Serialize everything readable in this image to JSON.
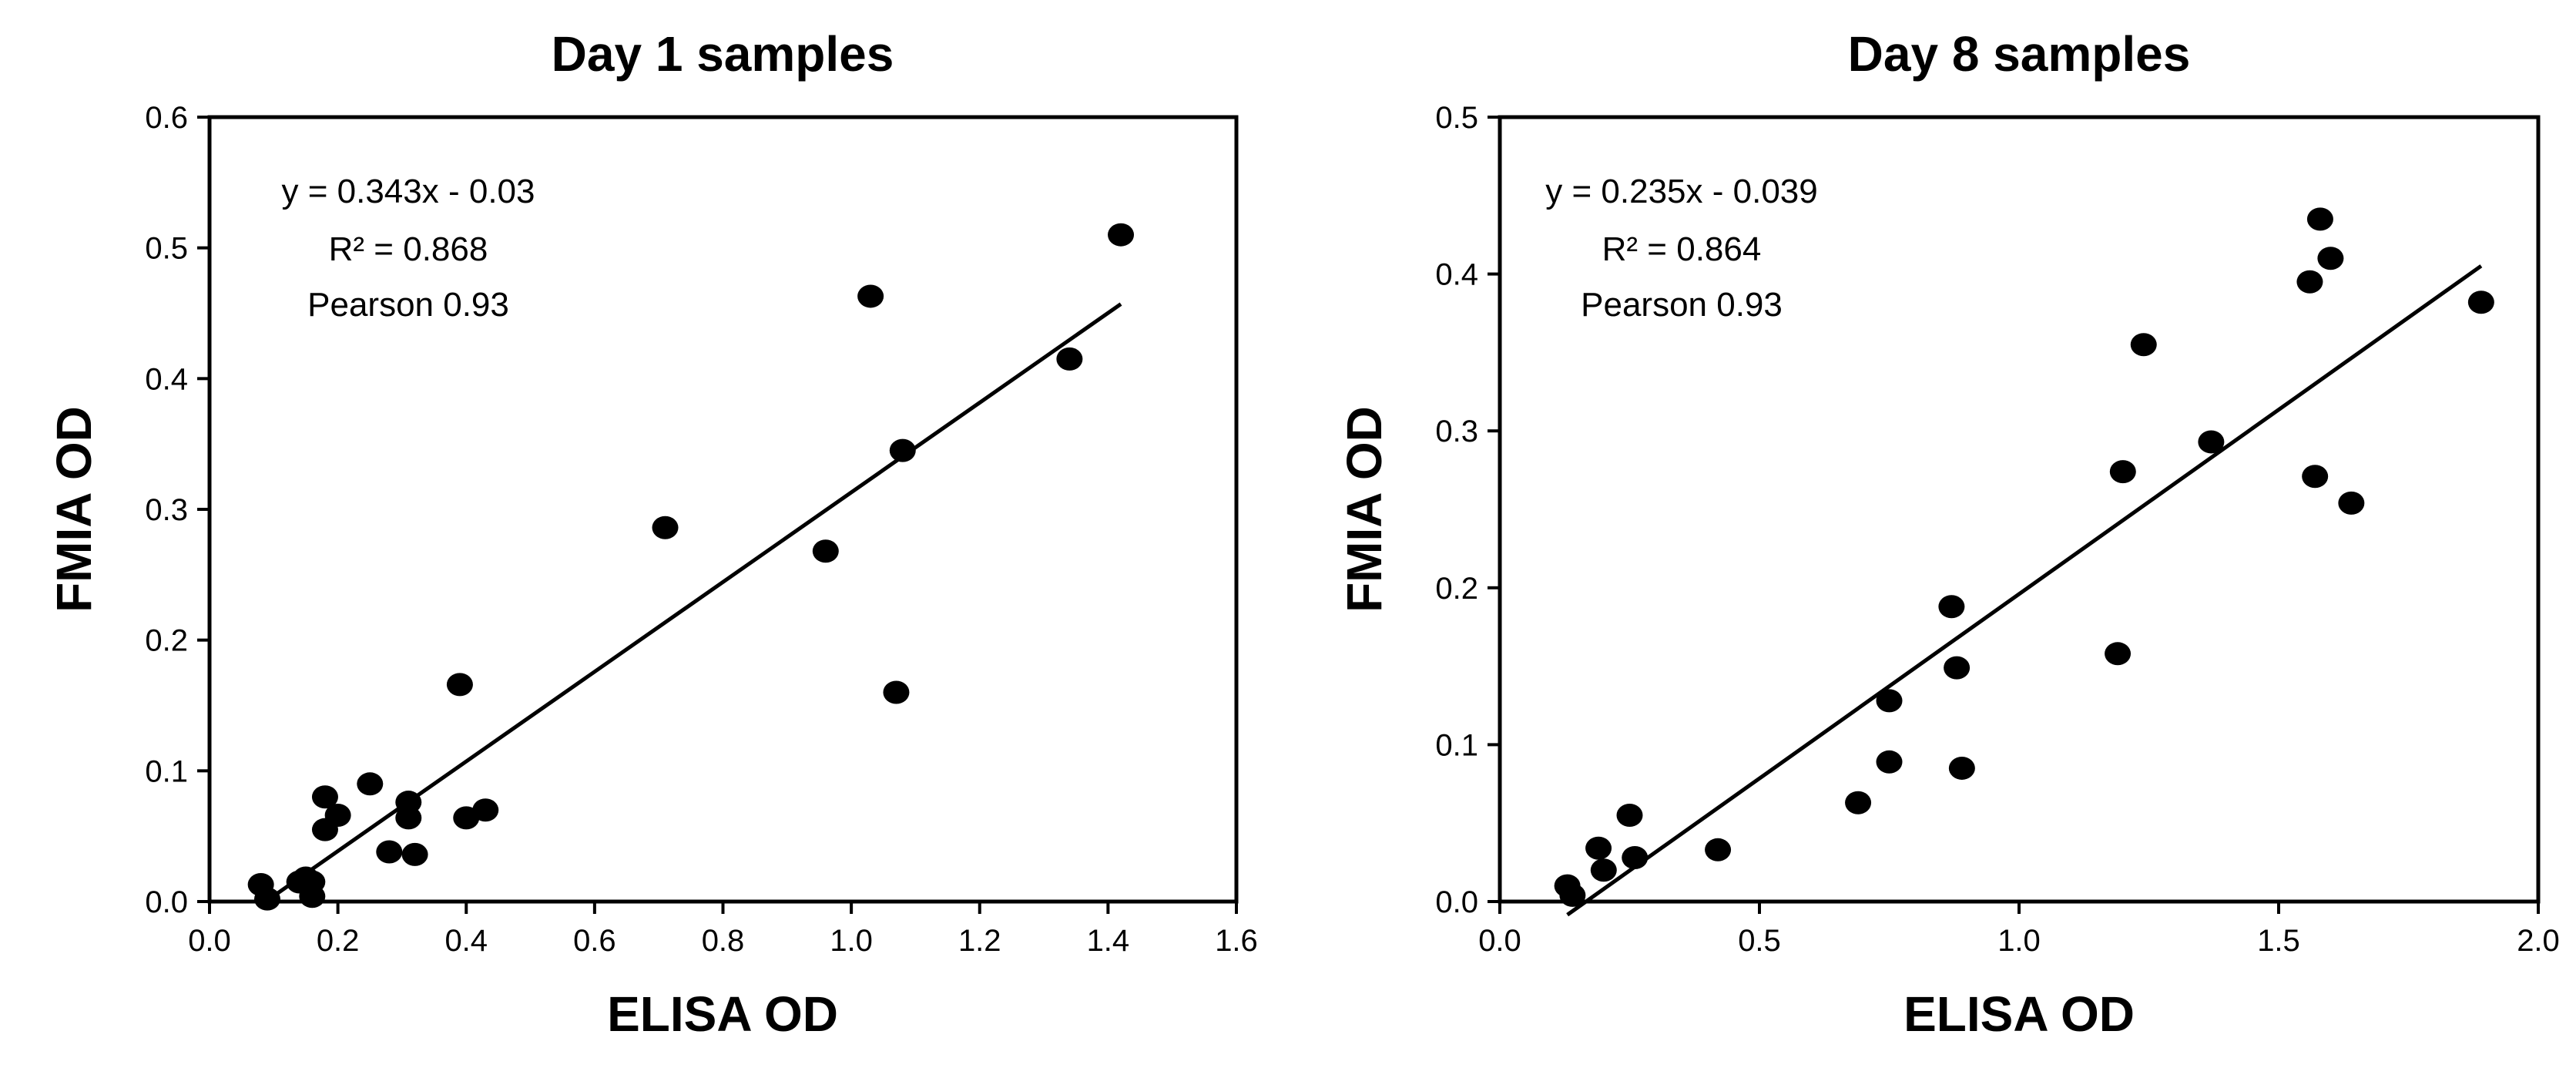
{
  "chart_data": [
    {
      "type": "scatter",
      "title": "Day 1 samples",
      "xlabel": "ELISA OD",
      "ylabel": "FMIA OD",
      "xlim": [
        0,
        1.6
      ],
      "ylim": [
        0,
        0.6
      ],
      "xticks": [
        0,
        0.2,
        0.4,
        0.6,
        0.8,
        1.0,
        1.2,
        1.4,
        1.6
      ],
      "xtick_labels": [
        "0.0",
        "0.2",
        "0.4",
        "0.6",
        "0.8",
        "1.0",
        "1.2",
        "1.4",
        "1.6"
      ],
      "yticks": [
        0,
        0.1,
        0.2,
        0.3,
        0.4,
        0.5,
        0.6
      ],
      "ytick_labels": [
        "0.0",
        "0.1",
        "0.2",
        "0.3",
        "0.4",
        "0.5",
        "0.6"
      ],
      "annotations": [
        "y = 0.343x - 0.03",
        "R² = 0.868",
        "Pearson 0.93"
      ],
      "trendline": {
        "slope": 0.343,
        "intercept": -0.03,
        "x_range": [
          0.09,
          1.42
        ]
      },
      "points": [
        [
          0.08,
          0.013
        ],
        [
          0.09,
          0.002
        ],
        [
          0.14,
          0.015
        ],
        [
          0.15,
          0.018
        ],
        [
          0.16,
          0.004
        ],
        [
          0.16,
          0.015
        ],
        [
          0.18,
          0.08
        ],
        [
          0.18,
          0.055
        ],
        [
          0.2,
          0.066
        ],
        [
          0.25,
          0.09
        ],
        [
          0.28,
          0.038
        ],
        [
          0.31,
          0.076
        ],
        [
          0.31,
          0.064
        ],
        [
          0.32,
          0.036
        ],
        [
          0.39,
          0.166
        ],
        [
          0.4,
          0.064
        ],
        [
          0.43,
          0.07
        ],
        [
          0.71,
          0.286
        ],
        [
          0.96,
          0.268
        ],
        [
          1.03,
          0.463
        ],
        [
          1.07,
          0.16
        ],
        [
          1.08,
          0.345
        ],
        [
          1.34,
          0.415
        ],
        [
          1.42,
          0.51
        ]
      ]
    },
    {
      "type": "scatter",
      "title": "Day 8 samples",
      "xlabel": "ELISA OD",
      "ylabel": "FMIA OD",
      "xlim": [
        0,
        2.0
      ],
      "ylim": [
        0,
        0.5
      ],
      "xticks": [
        0,
        0.5,
        1.0,
        1.5,
        2.0
      ],
      "xtick_labels": [
        "0.0",
        "0.5",
        "1.0",
        "1.5",
        "2.0"
      ],
      "yticks": [
        0,
        0.1,
        0.2,
        0.3,
        0.4,
        0.5
      ],
      "ytick_labels": [
        "0.0",
        "0.1",
        "0.2",
        "0.3",
        "0.4",
        "0.5"
      ],
      "annotations": [
        "y = 0.235x - 0.039",
        "R² = 0.864",
        "Pearson 0.93"
      ],
      "trendline": {
        "slope": 0.235,
        "intercept": -0.039,
        "x_range": [
          0.13,
          1.89
        ]
      },
      "points": [
        [
          0.13,
          0.01
        ],
        [
          0.14,
          0.004
        ],
        [
          0.19,
          0.034
        ],
        [
          0.2,
          0.02
        ],
        [
          0.25,
          0.055
        ],
        [
          0.26,
          0.028
        ],
        [
          0.42,
          0.033
        ],
        [
          0.69,
          0.063
        ],
        [
          0.75,
          0.128
        ],
        [
          0.75,
          0.089
        ],
        [
          0.87,
          0.188
        ],
        [
          0.88,
          0.149
        ],
        [
          0.89,
          0.085
        ],
        [
          1.19,
          0.158
        ],
        [
          1.2,
          0.274
        ],
        [
          1.24,
          0.355
        ],
        [
          1.37,
          0.293
        ],
        [
          1.56,
          0.395
        ],
        [
          1.57,
          0.271
        ],
        [
          1.58,
          0.435
        ],
        [
          1.6,
          0.41
        ],
        [
          1.64,
          0.254
        ],
        [
          1.89,
          0.382
        ]
      ]
    }
  ]
}
